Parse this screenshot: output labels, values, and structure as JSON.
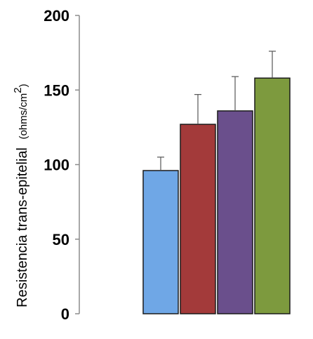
{
  "chart_data": {
    "type": "bar",
    "categories": [
      "",
      "",
      "",
      ""
    ],
    "values": [
      96,
      127,
      136,
      158
    ],
    "errors": [
      9,
      20,
      23,
      18
    ],
    "colors": [
      "#6fa7e6",
      "#a33a3a",
      "#6a4f8c",
      "#7d9a3e"
    ],
    "ylabel_main": "Resistencia trans-epitelial",
    "ylabel_unit": "(ohms/cm",
    "ylabel_unit_sup": "2",
    "ylabel_unit_close": ")",
    "ylim": [
      0,
      200
    ],
    "yticks": [
      "0",
      "50",
      "100",
      "150",
      "200"
    ],
    "grid": false,
    "legend": "none"
  }
}
